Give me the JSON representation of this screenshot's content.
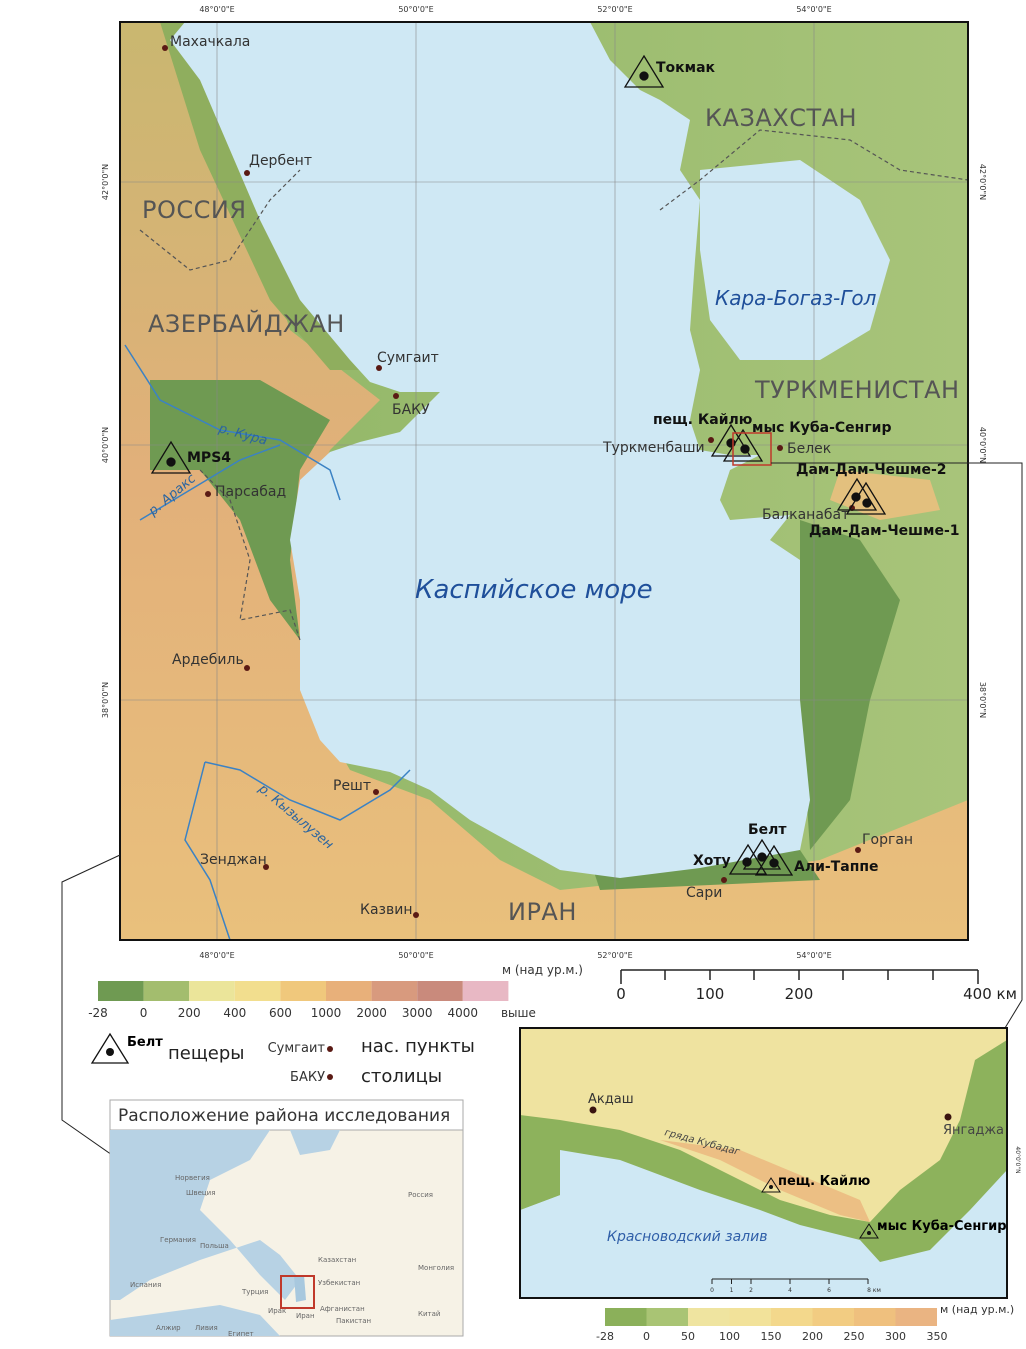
{
  "main_map": {
    "coords": {
      "top": [
        "48°0'0\"E",
        "50°0'0\"E",
        "52°0'0\"E",
        "54°0'0\"E"
      ],
      "bottom": [
        "48°0'0\"E",
        "50°0'0\"E",
        "52°0'0\"E",
        "54°0'0\"E"
      ],
      "left": [
        "42°0'0\"N",
        "40°0'0\"N",
        "38°0'0\"N"
      ],
      "right": [
        "42°0'0\"N",
        "40°0'0\"N",
        "38°0'0\"N"
      ]
    },
    "countries": [
      "РОССИЯ",
      "АЗЕРБАЙДЖАН",
      "КАЗАХСТАН",
      "ТУРКМЕНИСТАН",
      "ИРАН"
    ],
    "water_labels": {
      "sea": "Каспийское море",
      "lagoon": "Кара-Богаз-Гол"
    },
    "rivers": [
      "р. Кура",
      "р. Аракс",
      "р. Кызылузен"
    ],
    "cities": [
      "Махачкала",
      "Дербент",
      "Сумгаит",
      "БАКУ",
      "Парсабад",
      "Ардебиль",
      "Решт",
      "Зенджан",
      "Казвин",
      "Сари",
      "Горган",
      "Туркменбаши",
      "Белек",
      "Балканабат"
    ],
    "caves": [
      "Токмак",
      "MPS4",
      "пещ. Кайлю",
      "мыс Куба-Сенгир",
      "Дам-Дам-Чешме-2",
      "Дам-Дам-Чешме-1",
      "Белт",
      "Хоту",
      "Али-Таппе"
    ]
  },
  "elevation_legend": {
    "unit": "м (над ур.м.)",
    "ticks": [
      "-28",
      "0",
      "200",
      "400",
      "600",
      "1000",
      "2000",
      "3000",
      "4000",
      "выше"
    ],
    "colors": [
      "#6f9a52",
      "#a3bd6e",
      "#ebe59a",
      "#f2de8e",
      "#f0c87c",
      "#e8b07a",
      "#d89a7e",
      "#c98a7c",
      "#e8b8c4"
    ]
  },
  "scale_bar": {
    "ticks": [
      "0",
      "100",
      "200",
      "400 км"
    ]
  },
  "symbol_legend": {
    "cave_example": "Белт",
    "cave_label": "пещеры",
    "town_example": "Сумгаит",
    "town_label": "нас. пункты",
    "capital_example": "БАКУ",
    "capital_label": "столицы"
  },
  "overview_map": {
    "title": "Расположение района исследования",
    "labels": [
      "Россия",
      "Казахстан",
      "Монголия",
      "Китай",
      "Турция",
      "Иран",
      "Ирак",
      "Испания",
      "Польша",
      "Германия",
      "Швеция",
      "Норвегия",
      "Пакистан",
      "Афганистан",
      "Узбекистан",
      "Алжир",
      "Ливия",
      "Египет"
    ]
  },
  "detail_map": {
    "coord": "40°0'0\"N",
    "labels": {
      "village1": "Акдаш",
      "village2": "Янгаджа",
      "ridge": "гряда Кубадаг",
      "bay": "Красноводский залив",
      "cave1": "пещ. Кайлю",
      "cave2": "мыс Куба-Сенгир"
    },
    "scale": [
      "0",
      "1",
      "2",
      "4",
      "6",
      "8 км"
    ],
    "legend_unit": "м (над ур.м.)",
    "legend_ticks": [
      "-28",
      "0",
      "50",
      "100",
      "150",
      "200",
      "250",
      "300",
      "350"
    ],
    "legend_colors": [
      "#8bb05a",
      "#a9c474",
      "#efe4a0",
      "#f2e29a",
      "#f3d88c",
      "#f2cc82",
      "#efc07e",
      "#eab482"
    ]
  }
}
